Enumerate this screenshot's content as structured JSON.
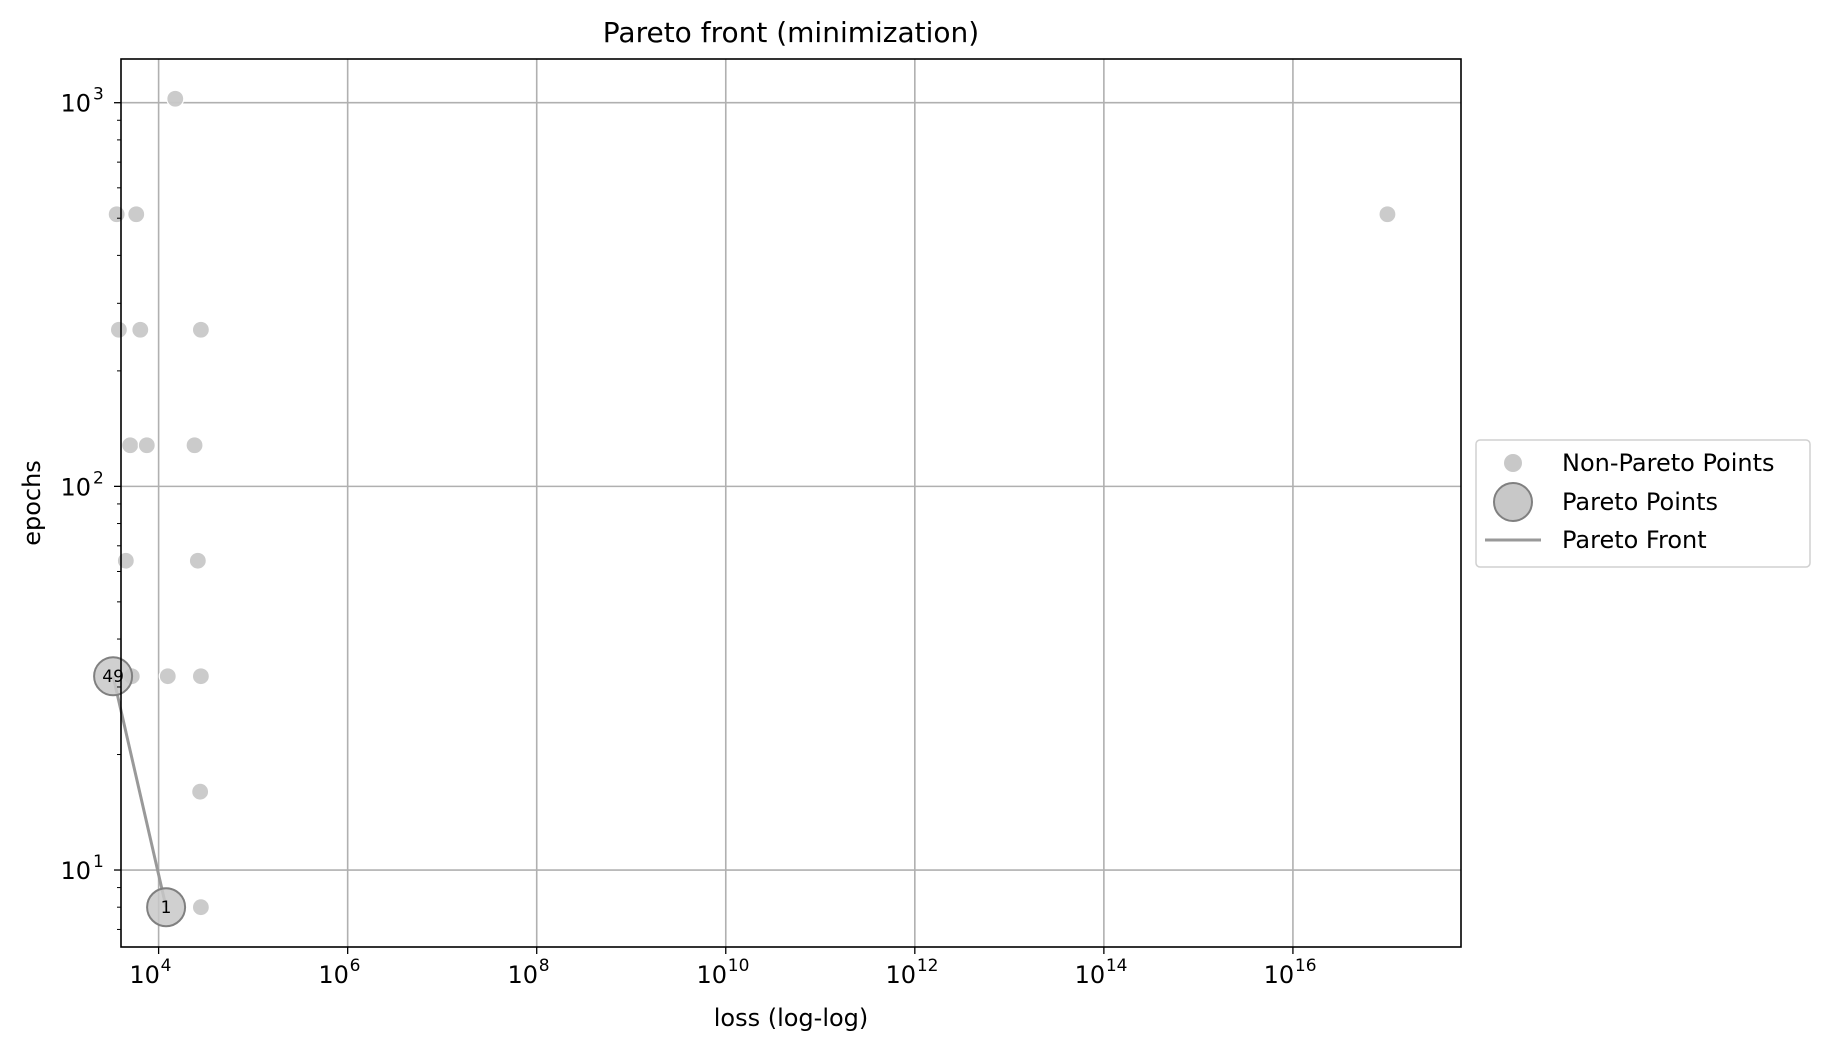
{
  "chart_data": {
    "type": "scatter",
    "title": "Pareto front (minimization)",
    "xlabel": "loss (log-log)",
    "ylabel": "epochs",
    "xscale": "log",
    "yscale": "log",
    "xlim": [
      4000,
      600000000000000000
    ],
    "ylim": [
      6.3,
      1300
    ],
    "grid": true,
    "legend_position": "center-left outside right",
    "x_ticks": [
      {
        "base": "10",
        "exp": "4",
        "value": 10000
      },
      {
        "base": "10",
        "exp": "6",
        "value": 1000000
      },
      {
        "base": "10",
        "exp": "8",
        "value": 100000000
      },
      {
        "base": "10",
        "exp": "10",
        "value": 10000000000
      },
      {
        "base": "10",
        "exp": "12",
        "value": 1000000000000
      },
      {
        "base": "10",
        "exp": "14",
        "value": 100000000000000
      },
      {
        "base": "10",
        "exp": "16",
        "value": 10000000000000000
      }
    ],
    "y_ticks": [
      {
        "base": "10",
        "exp": "1",
        "value": 10
      },
      {
        "base": "10",
        "exp": "2",
        "value": 100
      },
      {
        "base": "10",
        "exp": "3",
        "value": 1000
      }
    ],
    "series": [
      {
        "name": "Non-Pareto Points",
        "color": "#c8c8c8",
        "points": [
          {
            "x": 15000,
            "y": 1024
          },
          {
            "x": 3600,
            "y": 512
          },
          {
            "x": 5800,
            "y": 512
          },
          {
            "x": 100000000000000000,
            "y": 512
          },
          {
            "x": 3800,
            "y": 256
          },
          {
            "x": 6400,
            "y": 256
          },
          {
            "x": 28000,
            "y": 256
          },
          {
            "x": 5000,
            "y": 128
          },
          {
            "x": 7500,
            "y": 128
          },
          {
            "x": 24000,
            "y": 128
          },
          {
            "x": 4500,
            "y": 64
          },
          {
            "x": 26000,
            "y": 64
          },
          {
            "x": 5200,
            "y": 32
          },
          {
            "x": 12500,
            "y": 32
          },
          {
            "x": 28000,
            "y": 32
          },
          {
            "x": 27500,
            "y": 16
          },
          {
            "x": 28000,
            "y": 8
          }
        ]
      },
      {
        "name": "Pareto Points",
        "color": "#c8c8c8",
        "edge_color": "#808080",
        "points": [
          {
            "x": 3300,
            "y": 32,
            "label": "49"
          },
          {
            "x": 12000,
            "y": 8,
            "label": "1"
          }
        ]
      },
      {
        "name": "Pareto Front",
        "type": "line",
        "color": "#999999",
        "points": [
          {
            "x": 3300,
            "y": 32
          },
          {
            "x": 12000,
            "y": 8
          }
        ]
      }
    ]
  }
}
